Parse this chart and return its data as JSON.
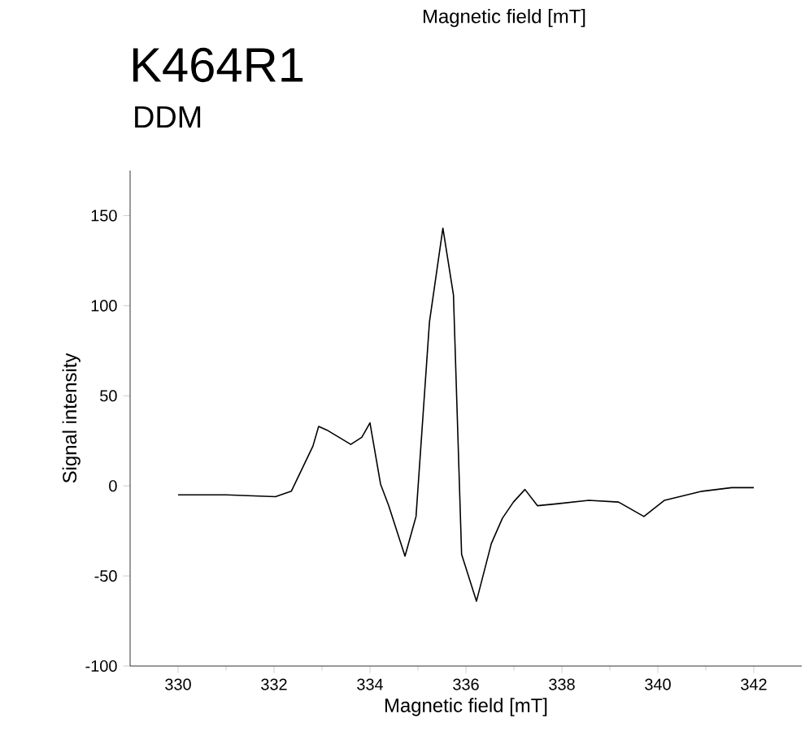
{
  "chart_data": {
    "type": "line",
    "title": "K464R1",
    "subtitle": "DDM",
    "xlabel": "Magnetic field [mT]",
    "ylabel": "Signal intensity",
    "annotations": [
      "Magnetic field [mT]"
    ],
    "x": [
      330.0,
      331.0,
      332.03,
      332.36,
      332.81,
      332.93,
      333.1,
      333.6,
      333.83,
      334.0,
      334.22,
      334.39,
      334.73,
      334.96,
      335.24,
      335.52,
      335.74,
      335.91,
      336.22,
      336.53,
      336.76,
      336.99,
      337.23,
      337.49,
      337.88,
      338.56,
      339.18,
      339.71,
      340.14,
      340.92,
      341.54,
      342.0
    ],
    "series": [
      {
        "color": "#000000",
        "values": [
          -5,
          -5,
          -6,
          -3,
          22,
          33,
          31,
          23,
          27,
          35,
          1,
          -11,
          -39,
          -17,
          91,
          143,
          106,
          -38,
          -64,
          -32,
          -18,
          -9,
          -2,
          -11,
          -10,
          -8,
          -9,
          -17,
          -8,
          -3,
          -1,
          -1
        ]
      }
    ],
    "xlim": [
      329,
      343
    ],
    "ylim": [
      -100,
      175
    ],
    "xticks": [
      330,
      332,
      334,
      336,
      338,
      340,
      342
    ],
    "yticks": [
      -100,
      -50,
      0,
      50,
      100,
      150
    ],
    "grid": false,
    "marker": "none",
    "line_style": "solid"
  }
}
